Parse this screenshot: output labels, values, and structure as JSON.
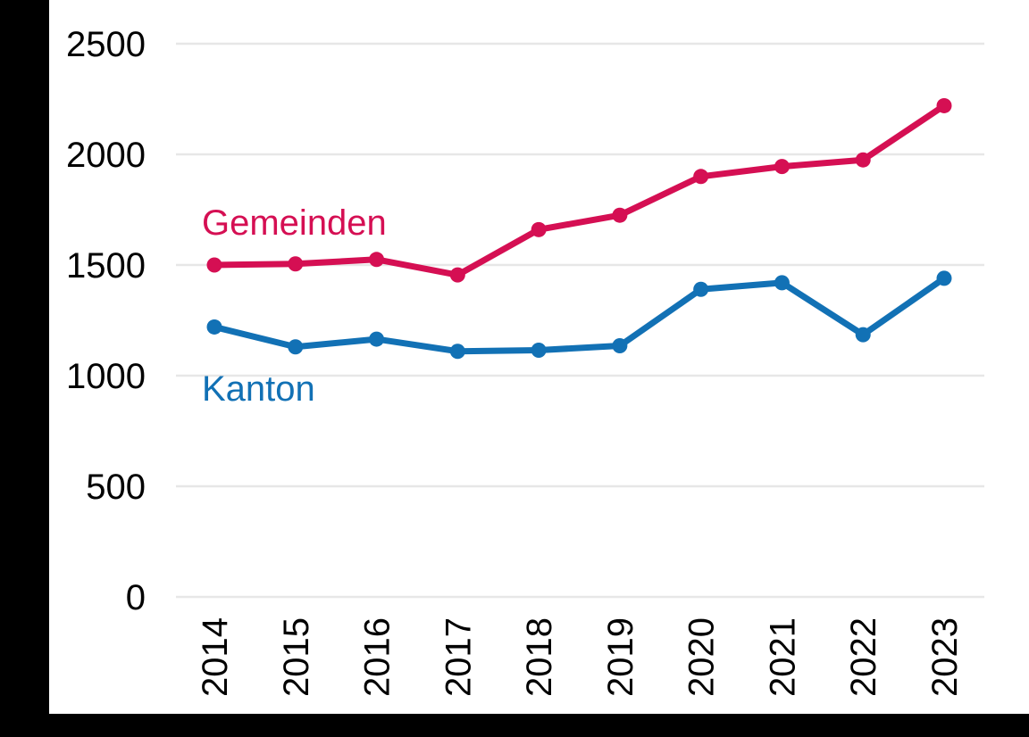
{
  "frame": {
    "background_color": "#000000",
    "panel_color": "#ffffff"
  },
  "chart_data": {
    "type": "line",
    "title": "",
    "xlabel": "",
    "ylabel": "",
    "categories": [
      "2014",
      "2015",
      "2016",
      "2017",
      "2018",
      "2019",
      "2020",
      "2021",
      "2022",
      "2023"
    ],
    "series": [
      {
        "name": "Gemeinden",
        "color": "#d50f53",
        "values": [
          1500,
          1505,
          1525,
          1455,
          1660,
          1725,
          1900,
          1945,
          1975,
          2220
        ]
      },
      {
        "name": "Kanton",
        "color": "#1271b5",
        "values": [
          1220,
          1130,
          1165,
          1110,
          1115,
          1135,
          1390,
          1420,
          1185,
          1440
        ]
      }
    ],
    "ylim": [
      0,
      2500
    ],
    "yticks": [
      0,
      500,
      1000,
      1500,
      2000,
      2500
    ],
    "x_tick_rotation_degrees": -90,
    "grid": "horizontal-only",
    "gridline_color": "#e7e7e7",
    "axis_text_color": "#000000",
    "legend_position": "inline-labels-on-chart"
  }
}
